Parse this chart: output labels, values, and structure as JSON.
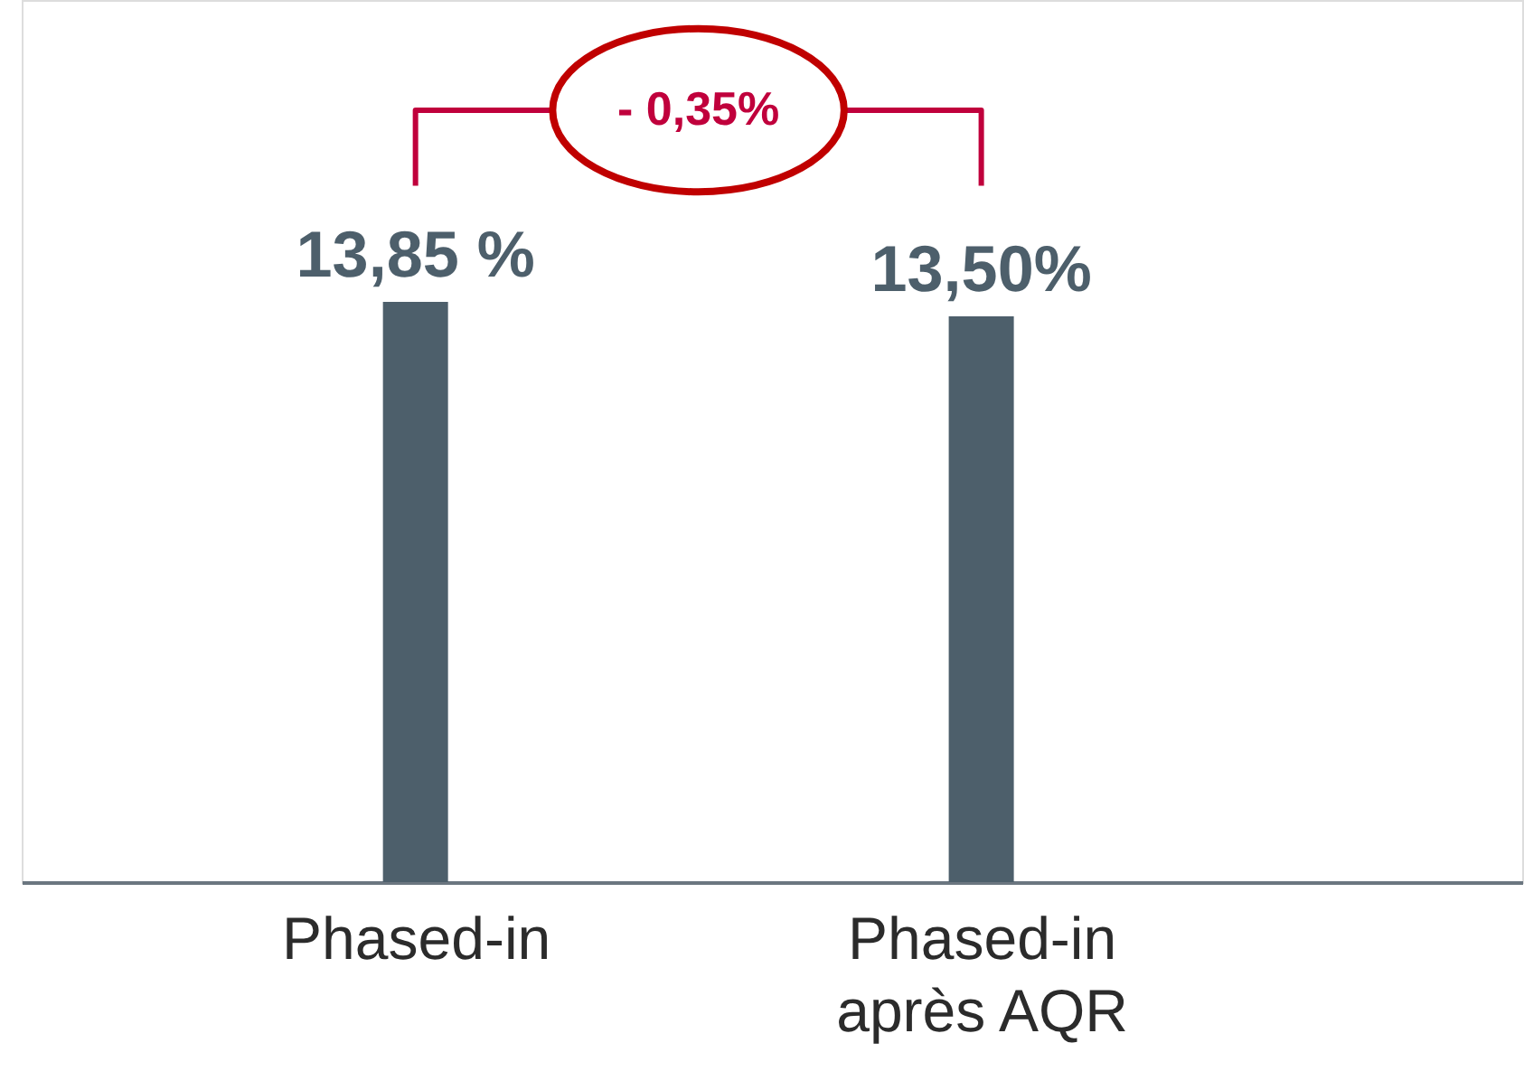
{
  "chart_data": {
    "type": "bar",
    "categories": [
      "Phased-in",
      "Phased-in\naprès AQR"
    ],
    "values": [
      13.85,
      13.5
    ],
    "value_labels": [
      "13,85 %",
      "13,50%"
    ],
    "color": "#4d5f6b",
    "annotations": [
      "- 0,35%"
    ],
    "grid": false,
    "tick_labels": "x"
  }
}
